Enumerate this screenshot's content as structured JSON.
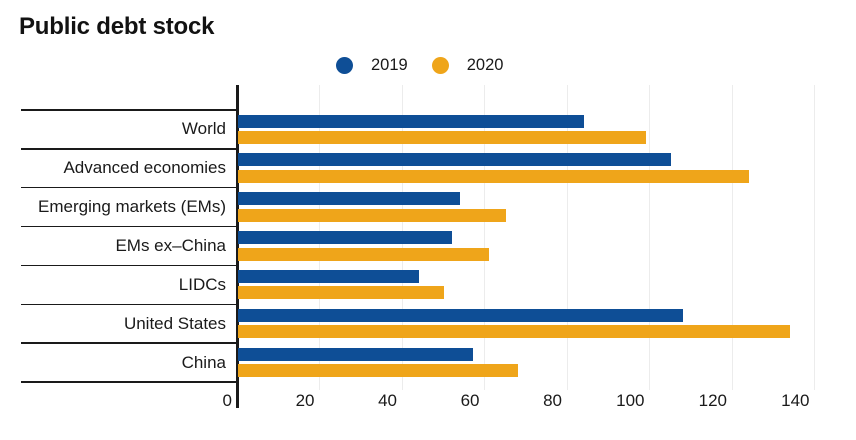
{
  "title": "Public debt stock",
  "legend": [
    {
      "label": "2019",
      "color": "#0e4e96"
    },
    {
      "label": "2020",
      "color": "#efa51a"
    }
  ],
  "colors": {
    "series_2019": "#0e4e96",
    "series_2020": "#efa51a",
    "axis": "#1a1a1a",
    "gridline": "#ececec",
    "text": "#1a1a1a",
    "background": "#ffffff"
  },
  "chart_data": {
    "type": "bar",
    "orientation": "horizontal",
    "title": "Public debt stock",
    "categories": [
      "World",
      "Advanced economies",
      "Emerging markets (EMs)",
      "EMs ex–China",
      "LIDCs",
      "United States",
      "China"
    ],
    "series": [
      {
        "name": "2019",
        "color": "#0e4e96",
        "values": [
          84,
          105,
          54,
          52,
          44,
          108,
          57
        ]
      },
      {
        "name": "2020",
        "color": "#efa51a",
        "values": [
          99,
          124,
          65,
          61,
          50,
          134,
          68
        ]
      }
    ],
    "xlim": [
      0,
      140
    ],
    "xticks": [
      0,
      20,
      40,
      60,
      80,
      100,
      120,
      140
    ],
    "xlabel": "",
    "ylabel": "",
    "grid": true,
    "legend_position": "top-center"
  }
}
